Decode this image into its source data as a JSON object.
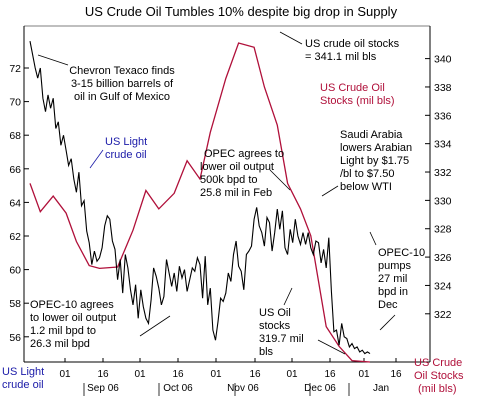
{
  "chart_data": {
    "type": "line",
    "title": "US Crude Oil Tumbles 10% despite big drop in Supply",
    "left_axis": {
      "ticks": [
        "56",
        "58",
        "60",
        "62",
        "64",
        "66",
        "68",
        "70",
        "72"
      ],
      "ylim": [
        54.5,
        74.5
      ]
    },
    "right_axis": {
      "ticks": [
        "322",
        "324",
        "326",
        "328",
        "330",
        "332",
        "334",
        "336",
        "338",
        "340"
      ],
      "ylim": [
        318.6,
        342.3
      ]
    },
    "x_ticks": [
      "01",
      "16",
      "01",
      "16",
      "01",
      "16",
      "01",
      "16",
      "01",
      "16"
    ],
    "months": [
      "Sep 06",
      "Oct 06",
      "Nov 06",
      "Dec 06",
      "Jan"
    ],
    "legend_left": {
      "line1": "US Light",
      "line2": "crude oil"
    },
    "legend_right": {
      "line1": "US Crude",
      "line2": "Oil Stocks",
      "line3": "(mil bls)"
    },
    "annotations": {
      "chevron": [
        "Chevron Texaco finds",
        "3-15 billion barrels of",
        "oil in Gulf of Mexico"
      ],
      "us_light": [
        "US Light",
        "crude oil"
      ],
      "stocks_peak": [
        "US crude oil stocks",
        "= 341.1 mil bls"
      ],
      "stocks_label": [
        "US Crude Oil",
        "Stocks (mil bls)"
      ],
      "opec_agrees": [
        "OPEC agrees to",
        "lower oil output",
        "500k bpd to",
        "25.8 mil in Feb"
      ],
      "saudi": [
        "Saudi Arabia",
        "lowers Arabian",
        "Light by $1.75",
        "/bl to $7.50",
        "below WTI"
      ],
      "opec10_agrees": [
        "OPEC-10 agrees",
        "to lower oil output",
        "1.2 mil bpd to",
        "26.3 mil bpd"
      ],
      "us_oil_stocks": [
        "US Oil",
        "stocks",
        "319.7 mil",
        "bls"
      ],
      "opec10_pumps": [
        "OPEC-10",
        "pumps",
        "27 mil",
        "bpd in",
        "Dec"
      ]
    },
    "stocks_series": {
      "name": "US Crude Oil Stocks (mil bls)",
      "x": [
        0,
        4,
        9,
        14,
        18,
        23,
        27,
        34,
        40,
        45,
        50,
        56,
        61,
        66,
        70,
        76,
        81,
        87,
        91,
        96,
        100,
        105,
        109,
        115,
        120,
        125,
        132
      ],
      "values": [
        331.2,
        329.2,
        330.3,
        329.1,
        327.1,
        325.4,
        325.2,
        325.3,
        327.9,
        330.7,
        329.4,
        330.5,
        332.8,
        331.5,
        334.8,
        338.6,
        341.1,
        340.8,
        338.0,
        335.3,
        331.2,
        329.4,
        327.5,
        321.1,
        319.7,
        318.7,
        318.6
      ]
    },
    "oil_series": {
      "name": "US Light crude oil",
      "x": [
        0,
        2,
        3,
        4,
        5,
        6,
        7,
        8,
        9,
        10,
        11,
        12,
        13,
        14,
        15,
        16,
        17,
        18,
        19,
        20,
        21,
        22,
        23,
        24,
        25,
        26,
        27,
        28,
        29,
        30,
        31,
        32,
        33,
        34,
        35,
        36,
        37,
        38,
        39,
        40,
        41,
        42,
        43,
        44,
        45,
        46,
        47,
        48,
        49,
        50,
        51,
        52,
        53,
        54,
        55,
        56,
        57,
        58,
        59,
        60,
        61,
        62,
        63,
        64,
        65,
        66,
        67,
        68,
        69,
        70,
        71,
        72,
        73,
        74,
        75,
        76,
        77,
        78,
        79,
        80,
        81,
        82,
        83,
        84,
        85,
        86,
        87,
        88,
        89,
        90,
        91,
        92,
        93,
        94,
        95,
        96,
        97,
        98,
        99,
        100,
        101,
        102,
        103,
        104,
        105,
        106,
        107,
        108,
        109,
        110,
        111,
        112,
        113,
        114,
        115,
        116,
        117,
        118,
        119,
        120,
        121,
        122,
        123,
        124,
        125,
        126,
        127,
        128,
        129,
        130,
        131,
        132
      ],
      "values": [
        73.6,
        72.0,
        71.4,
        72.0,
        70.2,
        69.4,
        70.4,
        69.6,
        70.2,
        68.4,
        68.8,
        67.4,
        68.0,
        67.1,
        66.2,
        66.6,
        65.4,
        64.6,
        65.8,
        63.8,
        64.1,
        62.3,
        61.6,
        60.3,
        61.1,
        60.5,
        60.7,
        61.3,
        62.6,
        63.2,
        63.0,
        61.7,
        61.2,
        59.4,
        60.6,
        58.6,
        60.9,
        60.1,
        58.8,
        57.9,
        59.1,
        57.1,
        58.8,
        57.8,
        57.1,
        56.8,
        58.2,
        60.1,
        59.6,
        58.9,
        57.9,
        58.4,
        60.6,
        59.8,
        59.0,
        59.8,
        58.7,
        60.2,
        59.5,
        60.0,
        58.7,
        59.4,
        60.1,
        59.9,
        60.7,
        60.3,
        58.3,
        60.8,
        57.9,
        58.9,
        56.4,
        55.8,
        56.9,
        58.3,
        58.1,
        58.6,
        59.8,
        59.3,
        60.9,
        61.7,
        60.2,
        59.9,
        58.8,
        60.9,
        61.1,
        61.4,
        63.0,
        63.7,
        62.6,
        62.2,
        61.4,
        63.1,
        62.8,
        61.1,
        62.2,
        63.6,
        62.4,
        63.5,
        61.3,
        60.9,
        62.4,
        61.6,
        63.0,
        62.0,
        61.5,
        62.2,
        61.5,
        62.2,
        61.3,
        60.9,
        61.7,
        61.6,
        60.4,
        61.2,
        60.1,
        61.9,
        58.7,
        56.3,
        56.4,
        55.5,
        56.8,
        56.0,
        55.9,
        55.4,
        55.6,
        55.3,
        55.4,
        55.1,
        55.2,
        55.0,
        55.1,
        55.0
      ]
    },
    "x_range": [
      0,
      132
    ],
    "grid": false,
    "legend": "bottom"
  }
}
